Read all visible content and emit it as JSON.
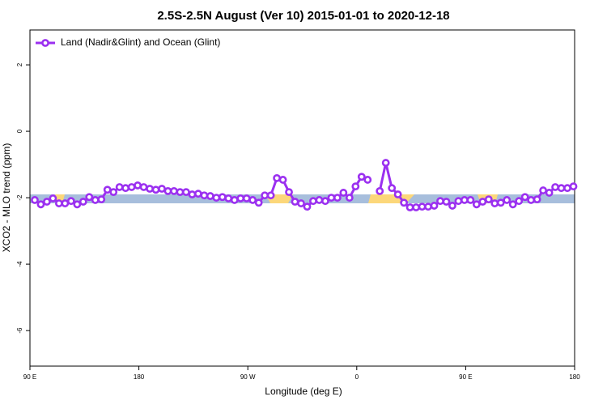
{
  "chart_data": {
    "type": "line",
    "title": "2.5S-2.5N August (Ver 10)   2015-01-01 to 2020-12-18",
    "x_label": "Longitude (deg E)",
    "y_label": "XCO2 - MLO trend (ppm)",
    "x": [
      94,
      99,
      104,
      109,
      114,
      119,
      124,
      129,
      134,
      139,
      144,
      149,
      154,
      159,
      164,
      169,
      174,
      179,
      184,
      189,
      194,
      199,
      204,
      209,
      214,
      219,
      224,
      229,
      234,
      239,
      244,
      249,
      254,
      259,
      264,
      269,
      274,
      279,
      284,
      289,
      294,
      299,
      304,
      309,
      314,
      319,
      324,
      329,
      334,
      339,
      344,
      349,
      354,
      359,
      364,
      369,
      374,
      379,
      384,
      389,
      394,
      399,
      404,
      409,
      414,
      419,
      424,
      429,
      434,
      439,
      444,
      449,
      454,
      459,
      464,
      469,
      474,
      479,
      484,
      489,
      494,
      499,
      504,
      509,
      514,
      519,
      524,
      529,
      534,
      539
    ],
    "series": [
      {
        "name": "Land (Nadir&Glint) and Ocean (Glint)",
        "color": "#9b30f0",
        "values": [
          -2.07,
          -2.2,
          -2.12,
          -2.02,
          -2.17,
          -2.17,
          -2.1,
          -2.2,
          -2.12,
          -1.98,
          -2.07,
          -2.05,
          -1.76,
          -1.83,
          -1.68,
          -1.71,
          -1.68,
          -1.63,
          -1.68,
          -1.73,
          -1.76,
          -1.73,
          -1.8,
          -1.8,
          -1.83,
          -1.83,
          -1.9,
          -1.88,
          -1.93,
          -1.95,
          -2.0,
          -1.98,
          -2.02,
          -2.07,
          -2.02,
          -2.02,
          -2.07,
          -2.15,
          -1.93,
          -1.93,
          -1.41,
          -1.46,
          -1.83,
          -2.12,
          -2.17,
          -2.27,
          -2.1,
          -2.07,
          -2.1,
          -2.0,
          -2.0,
          -1.85,
          -2.0,
          -1.66,
          -1.37,
          -1.46,
          null,
          -1.8,
          -0.95,
          -1.71,
          -1.9,
          -2.15,
          -2.29,
          -2.29,
          -2.27,
          -2.27,
          -2.24,
          -2.1,
          -2.12,
          -2.24,
          -2.1,
          -2.07,
          -2.07,
          -2.2,
          -2.12,
          -2.05,
          -2.17,
          -2.15,
          -2.07,
          -2.2,
          -2.1,
          -1.98,
          -2.07,
          -2.05,
          -1.78,
          -1.85,
          -1.68,
          -1.71,
          -1.71,
          -1.66
        ]
      }
    ],
    "xlim": [
      90,
      540
    ],
    "xticks": [
      {
        "value": 90,
        "label": "90 E"
      },
      180,
      {
        "value": 270,
        "label": "90 W"
      },
      {
        "value": 360,
        "label": "0"
      },
      {
        "value": 450,
        "label": "90 E"
      },
      {
        "value": 540,
        "label": "180"
      }
    ],
    "ylim": [
      -7.07,
      3.05
    ],
    "yticks": [
      -6,
      -4,
      -2,
      0,
      2
    ],
    "legend": "top-left"
  }
}
